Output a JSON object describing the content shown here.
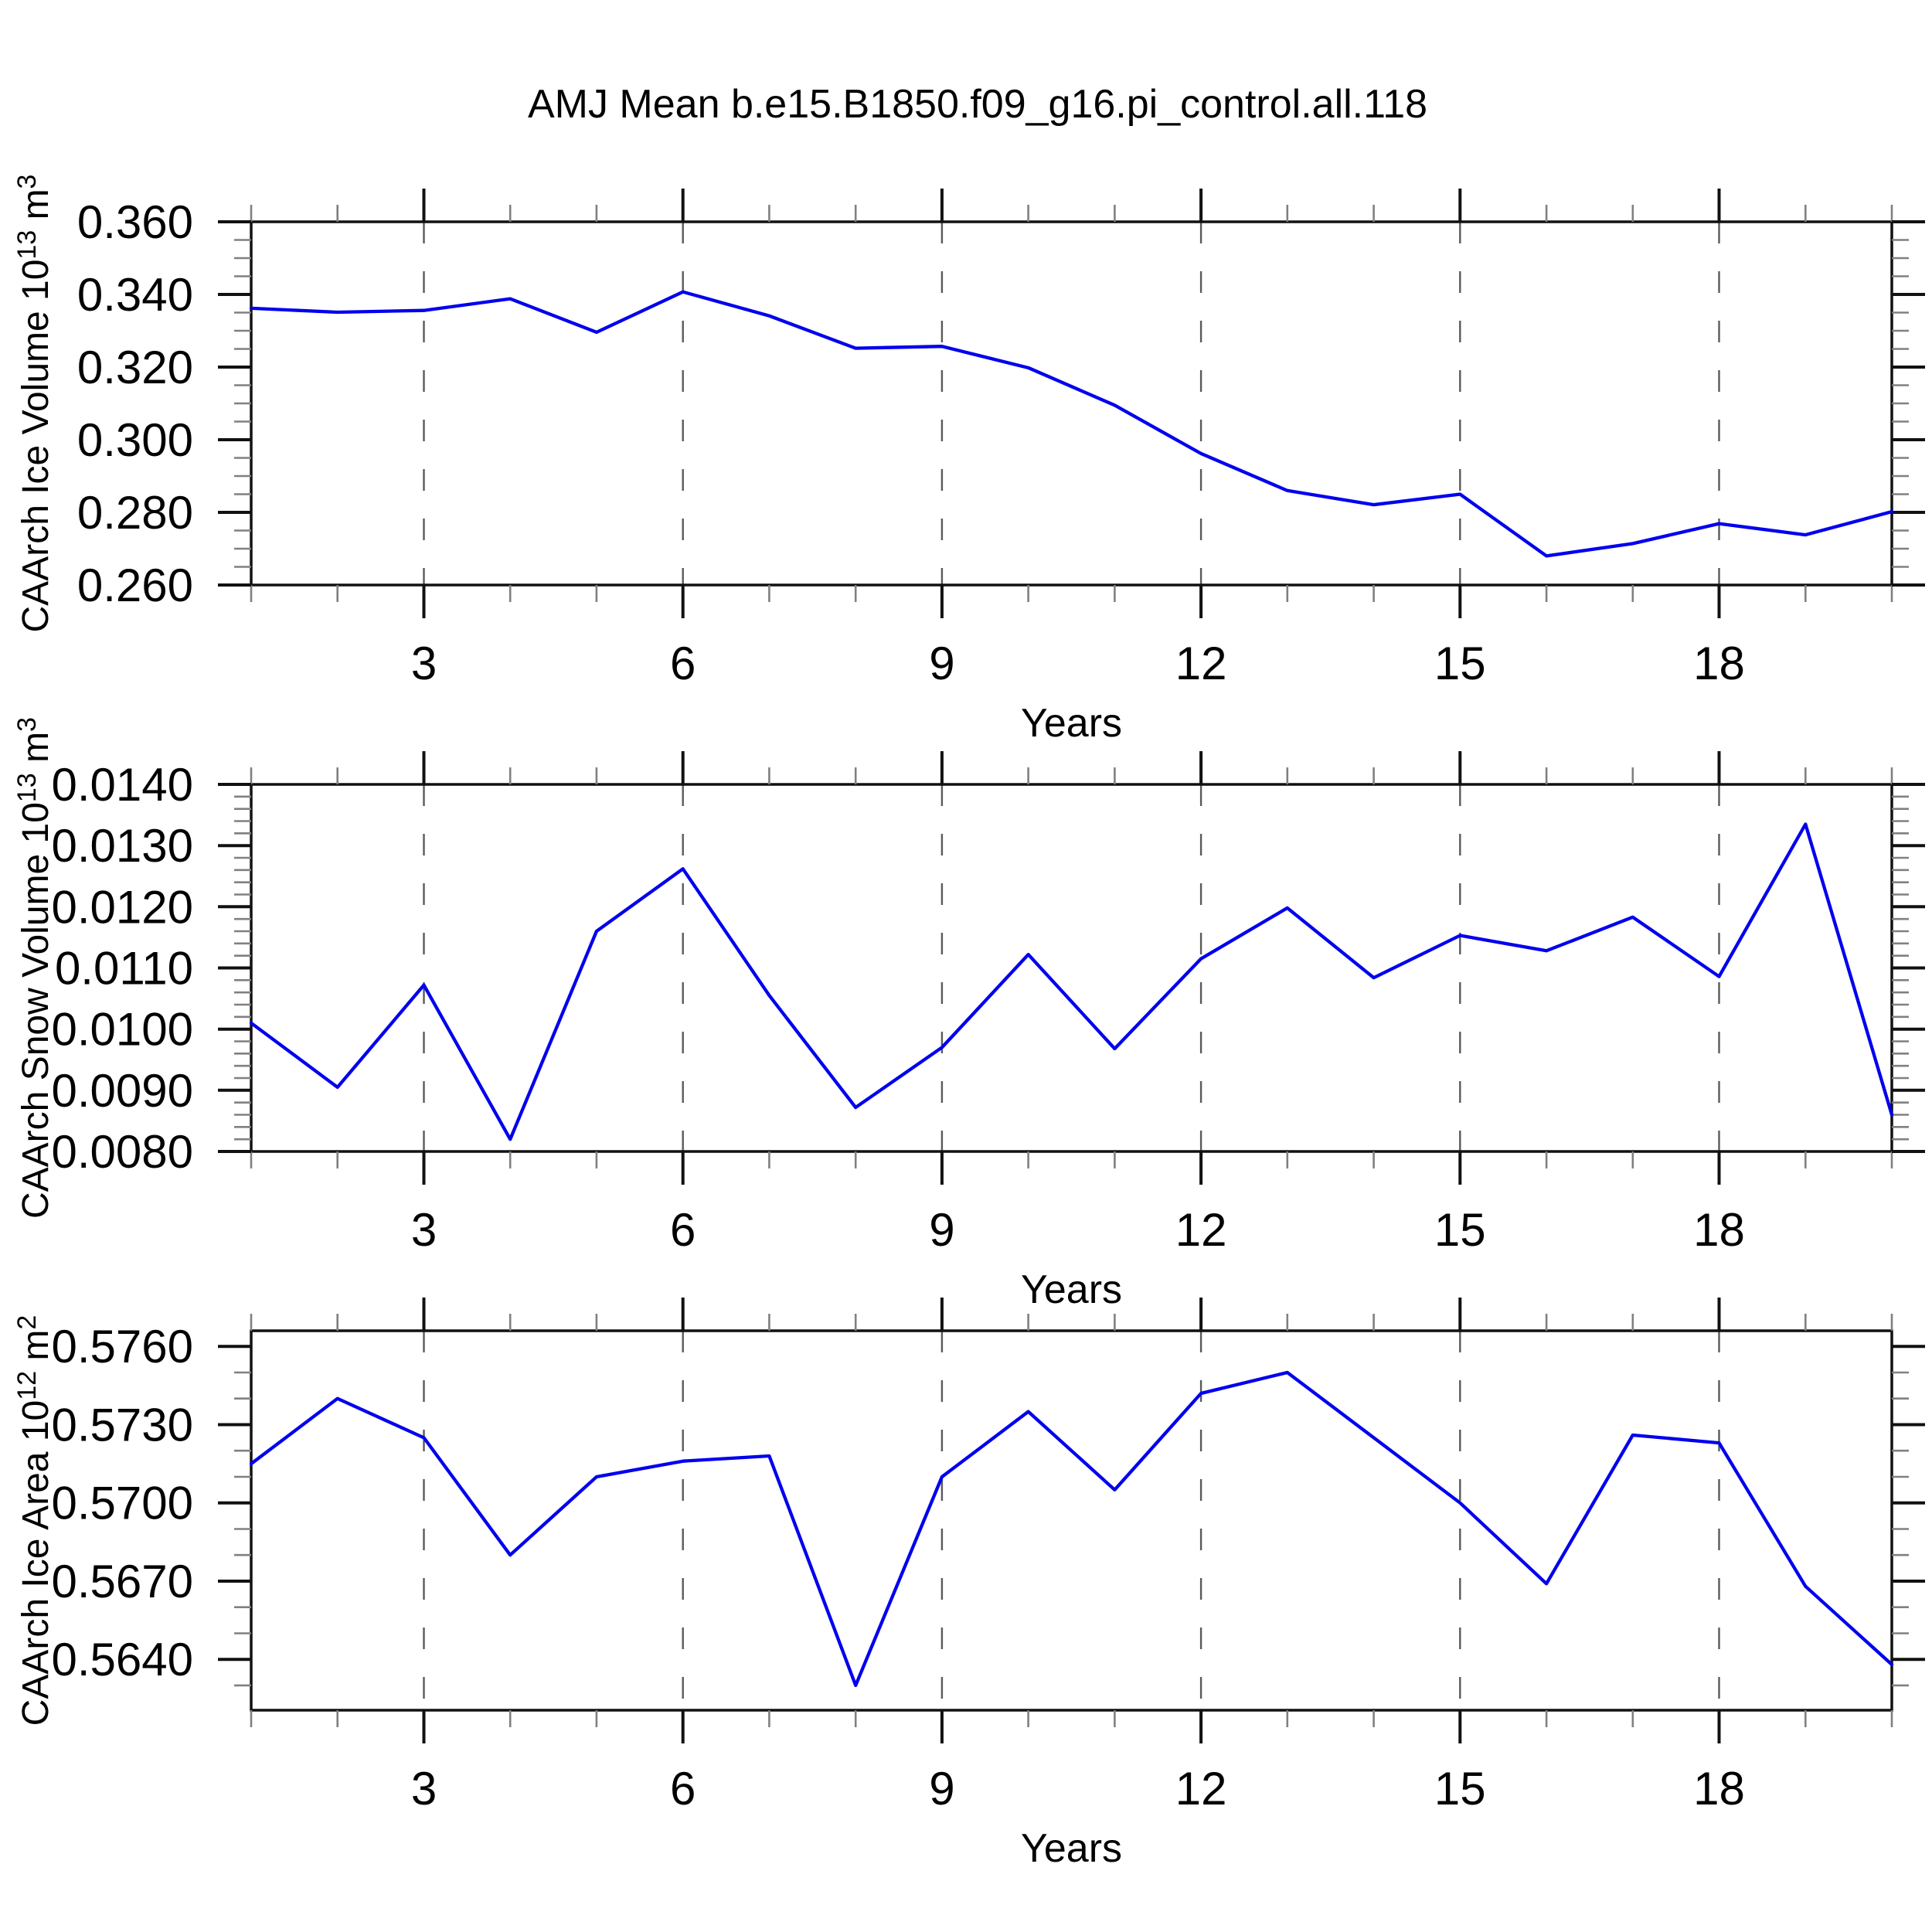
{
  "figure_title": "AMJ Mean b.e15.B1850.f09_g16.pi_control.all.118",
  "colors": {
    "line": "#0000ee",
    "frame": "#111111",
    "major_tick": "#111111",
    "minor_tick": "#808080",
    "grid_dash": "#5a5a5a",
    "text": "#000000",
    "background": "#ffffff"
  },
  "x_axis": {
    "label": "Years",
    "range": [
      1,
      20
    ],
    "ticks": [
      3,
      6,
      9,
      12,
      15,
      18
    ],
    "tick_labels": [
      "3",
      "6",
      "9",
      "12",
      "15",
      "18"
    ],
    "minor_every": 1
  },
  "chart_data": [
    {
      "id": "ice-volume",
      "type": "line",
      "ylabel": "CAArch Ice Volume 10¹³ m³",
      "ylabel_parts": [
        {
          "t": "CAArch Ice Volume 10"
        },
        {
          "t": "13",
          "sup": true
        },
        {
          "t": " m"
        },
        {
          "t": "3",
          "sup": true
        }
      ],
      "xlabel": "Years",
      "x": [
        1,
        2,
        3,
        4,
        5,
        6,
        7,
        8,
        9,
        10,
        11,
        12,
        13,
        14,
        15,
        16,
        17,
        18,
        19,
        20
      ],
      "values": [
        0.3362,
        0.3351,
        0.3356,
        0.3388,
        0.3296,
        0.3407,
        0.3341,
        0.3252,
        0.3257,
        0.3198,
        0.3095,
        0.2962,
        0.286,
        0.2821,
        0.285,
        0.268,
        0.2714,
        0.2769,
        0.2738,
        0.2802
      ],
      "ylim": [
        0.26,
        0.36
      ],
      "yticks": [
        0.26,
        0.28,
        0.3,
        0.32,
        0.34,
        0.36
      ],
      "ytick_labels": [
        "0.260",
        "0.280",
        "0.300",
        "0.320",
        "0.340",
        "0.360"
      ],
      "yminor_step": 0.005,
      "grid": "vertical-dashed-at-x-major-ticks"
    },
    {
      "id": "snow-volume",
      "type": "line",
      "ylabel": "CAArch Snow Volume 10¹³ m³",
      "ylabel_parts": [
        {
          "t": "CAArch Snow Volume 10"
        },
        {
          "t": "13",
          "sup": true
        },
        {
          "t": " m"
        },
        {
          "t": "3",
          "sup": true
        }
      ],
      "xlabel": "Years",
      "x": [
        1,
        2,
        3,
        4,
        5,
        6,
        7,
        8,
        9,
        10,
        11,
        12,
        13,
        14,
        15,
        16,
        17,
        18,
        19,
        20
      ],
      "values": [
        0.0101,
        0.00905,
        0.01072,
        0.0082,
        0.0116,
        0.01262,
        0.01055,
        0.00872,
        0.0097,
        0.01122,
        0.00968,
        0.01115,
        0.01198,
        0.01084,
        0.01153,
        0.01128,
        0.01183,
        0.01086,
        0.01335,
        0.0086
      ],
      "ylim": [
        0.008,
        0.014
      ],
      "yticks": [
        0.008,
        0.009,
        0.01,
        0.011,
        0.012,
        0.013,
        0.014
      ],
      "ytick_labels": [
        "0.0080",
        "0.0090",
        "0.0100",
        "0.0110",
        "0.0120",
        "0.0130",
        "0.0140"
      ],
      "yminor_step": 0.0002,
      "grid": "vertical-dashed-at-x-major-ticks"
    },
    {
      "id": "ice-area",
      "type": "line",
      "ylabel": "CAArch Ice Area 10¹² m²",
      "ylabel_parts": [
        {
          "t": "CAArch Ice Area 10"
        },
        {
          "t": "12",
          "sup": true
        },
        {
          "t": " m"
        },
        {
          "t": "2",
          "sup": true
        }
      ],
      "xlabel": "Years",
      "x": [
        1,
        2,
        3,
        4,
        5,
        6,
        7,
        8,
        9,
        10,
        11,
        12,
        13,
        14,
        15,
        16,
        17,
        18,
        19,
        20
      ],
      "values": [
        0.5715,
        0.574,
        0.5725,
        0.568,
        0.571,
        0.5716,
        0.5718,
        0.563,
        0.571,
        0.5735,
        0.5705,
        0.5742,
        0.575,
        0.5725,
        0.57,
        0.5669,
        0.5726,
        0.5723,
        0.5668,
        0.5638
      ],
      "ylim": [
        0.56205,
        0.5766
      ],
      "yticks": [
        0.564,
        0.567,
        0.57,
        0.573,
        0.576
      ],
      "ytick_labels": [
        "0.5640",
        "0.5670",
        "0.5700",
        "0.5730",
        "0.5760"
      ],
      "yminor_step": 0.001,
      "grid": "vertical-dashed-at-x-major-ticks"
    }
  ]
}
